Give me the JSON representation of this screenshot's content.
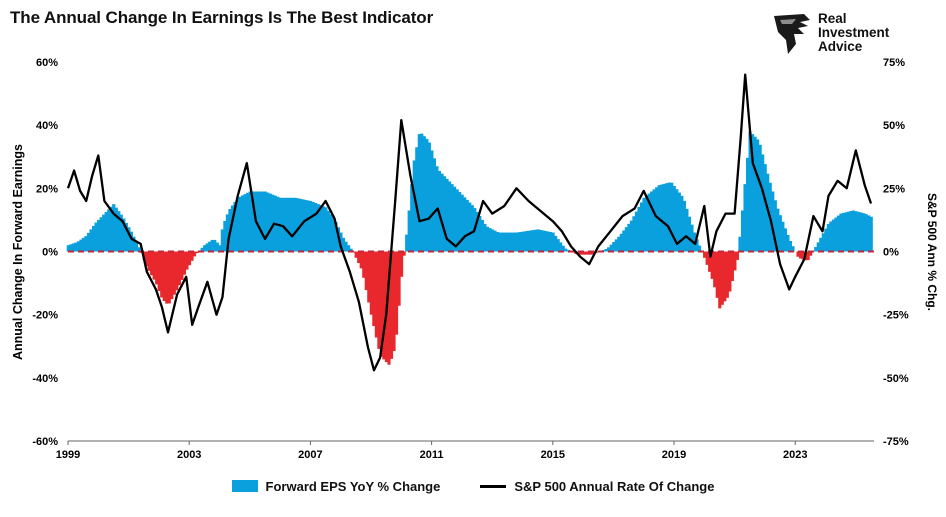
{
  "title": "The Annual Change In Earnings Is The Best Indicator",
  "logo": {
    "lines": [
      "Real",
      "Investment",
      "Advice"
    ],
    "icon": "eagle-head-icon",
    "color": "#1a1a1a"
  },
  "chart_data": {
    "type": "bar+line",
    "ylabel_left": "Annual Change In Forward Earnings",
    "ylabel_right": "S&P 500  Ann % Chg.",
    "ylim_left": [
      -60,
      60
    ],
    "ylim_right": [
      -75,
      75
    ],
    "left_ticks": [
      "60%",
      "40%",
      "20%",
      "0%",
      "-20%",
      "-40%",
      "-60%"
    ],
    "right_ticks": [
      "75%",
      "50%",
      "25%",
      "0%",
      "-25%",
      "-50%",
      "-75%"
    ],
    "xlim": [
      1999,
      2025.6
    ],
    "x_ticks": [
      "1999",
      "2003",
      "2007",
      "2011",
      "2015",
      "2019",
      "2023"
    ],
    "grid": false,
    "legend_position": "bottom",
    "colors": {
      "positive": "#0aa0de",
      "negative": "#e8282d",
      "line": "#000000",
      "zero": "#c0283c"
    },
    "series": [
      {
        "name": "Forward EPS YoY % Change",
        "kind": "bar",
        "points": [
          [
            1999.0,
            2
          ],
          [
            1999.3,
            3
          ],
          [
            1999.6,
            5
          ],
          [
            1999.9,
            9
          ],
          [
            2000.2,
            12
          ],
          [
            2000.5,
            15
          ],
          [
            2000.8,
            11
          ],
          [
            2001.1,
            6
          ],
          [
            2001.4,
            0
          ],
          [
            2001.6,
            -5
          ],
          [
            2001.9,
            -10
          ],
          [
            2002.1,
            -15
          ],
          [
            2002.3,
            -17
          ],
          [
            2002.6,
            -12
          ],
          [
            2002.9,
            -6
          ],
          [
            2003.2,
            -1
          ],
          [
            2003.5,
            2
          ],
          [
            2003.8,
            4
          ],
          [
            2004.0,
            2
          ],
          [
            2004.1,
            8
          ],
          [
            2004.3,
            13
          ],
          [
            2004.6,
            17
          ],
          [
            2005.0,
            19
          ],
          [
            2005.5,
            19
          ],
          [
            2006.0,
            17
          ],
          [
            2006.5,
            17
          ],
          [
            2007.0,
            16
          ],
          [
            2007.5,
            14
          ],
          [
            2007.8,
            10
          ],
          [
            2008.1,
            4
          ],
          [
            2008.4,
            0
          ],
          [
            2008.7,
            -6
          ],
          [
            2009.0,
            -20
          ],
          [
            2009.3,
            -33
          ],
          [
            2009.6,
            -36
          ],
          [
            2009.8,
            -30
          ],
          [
            2010.0,
            -8
          ],
          [
            2010.2,
            8
          ],
          [
            2010.4,
            28
          ],
          [
            2010.6,
            38
          ],
          [
            2010.9,
            35
          ],
          [
            2011.2,
            26
          ],
          [
            2011.6,
            22
          ],
          [
            2012.0,
            18
          ],
          [
            2012.4,
            14
          ],
          [
            2012.8,
            8
          ],
          [
            2013.2,
            6
          ],
          [
            2013.8,
            6
          ],
          [
            2014.5,
            7
          ],
          [
            2015.0,
            6
          ],
          [
            2015.4,
            1
          ],
          [
            2015.8,
            -1
          ],
          [
            2016.3,
            -1
          ],
          [
            2016.8,
            1
          ],
          [
            2017.2,
            5
          ],
          [
            2017.6,
            10
          ],
          [
            2018.0,
            17
          ],
          [
            2018.5,
            21
          ],
          [
            2018.9,
            22
          ],
          [
            2019.3,
            17
          ],
          [
            2019.7,
            5
          ],
          [
            2020.0,
            -2
          ],
          [
            2020.3,
            -10
          ],
          [
            2020.5,
            -18
          ],
          [
            2020.8,
            -14
          ],
          [
            2021.1,
            -2
          ],
          [
            2021.3,
            18
          ],
          [
            2021.5,
            38
          ],
          [
            2021.8,
            35
          ],
          [
            2022.1,
            24
          ],
          [
            2022.4,
            14
          ],
          [
            2022.8,
            4
          ],
          [
            2023.1,
            -2
          ],
          [
            2023.4,
            -3
          ],
          [
            2023.7,
            2
          ],
          [
            2024.1,
            9
          ],
          [
            2024.5,
            12
          ],
          [
            2024.9,
            13
          ],
          [
            2025.3,
            12
          ],
          [
            2025.5,
            11
          ]
        ]
      },
      {
        "name": "S&P 500 Annual Rate Of Change",
        "kind": "line",
        "points": [
          [
            1999.0,
            25
          ],
          [
            1999.2,
            32
          ],
          [
            1999.4,
            24
          ],
          [
            1999.6,
            20
          ],
          [
            1999.8,
            30
          ],
          [
            2000.0,
            38
          ],
          [
            2000.2,
            20
          ],
          [
            2000.5,
            15
          ],
          [
            2000.8,
            12
          ],
          [
            2001.1,
            5
          ],
          [
            2001.4,
            3
          ],
          [
            2001.6,
            -8
          ],
          [
            2001.9,
            -15
          ],
          [
            2002.1,
            -22
          ],
          [
            2002.3,
            -32
          ],
          [
            2002.6,
            -17
          ],
          [
            2002.9,
            -10
          ],
          [
            2003.1,
            -29
          ],
          [
            2003.3,
            -22
          ],
          [
            2003.6,
            -12
          ],
          [
            2003.9,
            -25
          ],
          [
            2004.1,
            -18
          ],
          [
            2004.3,
            5
          ],
          [
            2004.6,
            22
          ],
          [
            2004.9,
            35
          ],
          [
            2005.2,
            12
          ],
          [
            2005.5,
            5
          ],
          [
            2005.8,
            11
          ],
          [
            2006.1,
            10
          ],
          [
            2006.4,
            6
          ],
          [
            2006.8,
            12
          ],
          [
            2007.2,
            15
          ],
          [
            2007.5,
            20
          ],
          [
            2007.8,
            13
          ],
          [
            2008.0,
            2
          ],
          [
            2008.3,
            -8
          ],
          [
            2008.6,
            -20
          ],
          [
            2008.9,
            -38
          ],
          [
            2009.1,
            -47
          ],
          [
            2009.3,
            -42
          ],
          [
            2009.5,
            -25
          ],
          [
            2009.8,
            20
          ],
          [
            2010.0,
            52
          ],
          [
            2010.3,
            30
          ],
          [
            2010.6,
            12
          ],
          [
            2010.9,
            13
          ],
          [
            2011.2,
            17
          ],
          [
            2011.5,
            5
          ],
          [
            2011.8,
            2
          ],
          [
            2012.1,
            6
          ],
          [
            2012.4,
            8
          ],
          [
            2012.7,
            20
          ],
          [
            2013.0,
            15
          ],
          [
            2013.4,
            18
          ],
          [
            2013.8,
            25
          ],
          [
            2014.2,
            20
          ],
          [
            2014.6,
            16
          ],
          [
            2015.0,
            12
          ],
          [
            2015.3,
            8
          ],
          [
            2015.6,
            2
          ],
          [
            2015.9,
            -2
          ],
          [
            2016.2,
            -5
          ],
          [
            2016.5,
            2
          ],
          [
            2016.9,
            8
          ],
          [
            2017.3,
            14
          ],
          [
            2017.7,
            17
          ],
          [
            2018.0,
            24
          ],
          [
            2018.4,
            14
          ],
          [
            2018.8,
            10
          ],
          [
            2019.1,
            3
          ],
          [
            2019.4,
            6
          ],
          [
            2019.7,
            3
          ],
          [
            2020.0,
            18
          ],
          [
            2020.2,
            -2
          ],
          [
            2020.4,
            8
          ],
          [
            2020.7,
            15
          ],
          [
            2021.0,
            15
          ],
          [
            2021.2,
            45
          ],
          [
            2021.35,
            70
          ],
          [
            2021.6,
            35
          ],
          [
            2021.9,
            25
          ],
          [
            2022.2,
            12
          ],
          [
            2022.5,
            -5
          ],
          [
            2022.8,
            -15
          ],
          [
            2023.0,
            -10
          ],
          [
            2023.3,
            -3
          ],
          [
            2023.6,
            14
          ],
          [
            2023.9,
            8
          ],
          [
            2024.1,
            22
          ],
          [
            2024.4,
            28
          ],
          [
            2024.7,
            25
          ],
          [
            2025.0,
            40
          ],
          [
            2025.3,
            26
          ],
          [
            2025.5,
            19
          ]
        ]
      }
    ]
  },
  "legend": {
    "bar_label": "Forward EPS YoY % Change",
    "line_label": "S&P 500 Annual Rate Of Change"
  }
}
